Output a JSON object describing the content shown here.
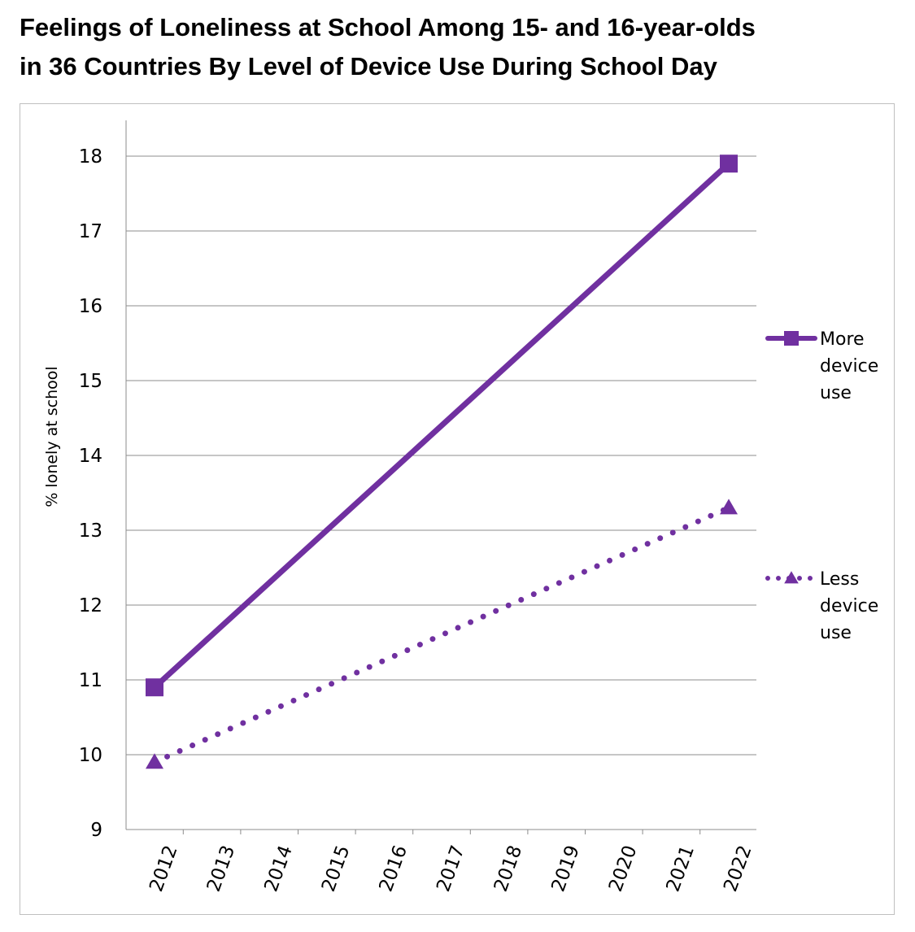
{
  "title_lines": [
    "Feelings of Loneliness at School Among 15- and 16-year-olds",
    "in 36 Countries By Level of Device Use During School Day"
  ],
  "chart_data": {
    "type": "line",
    "title": "Feelings of Loneliness at School Among 15- and 16-year-olds in 36 Countries By Level of Device Use During School Day",
    "categories": [
      "2012",
      "2013",
      "2014",
      "2015",
      "2016",
      "2017",
      "2018",
      "2019",
      "2020",
      "2021",
      "2022"
    ],
    "ylabel": "% lonely at school",
    "xlabel": "",
    "ylim": [
      9,
      18
    ],
    "yticks": [
      9,
      10,
      11,
      12,
      13,
      14,
      15,
      16,
      17,
      18
    ],
    "grid": "horizontal",
    "legend_position": "right",
    "series": [
      {
        "name": "More device use",
        "legend_lines": [
          "More",
          "device",
          "use"
        ],
        "style": "solid",
        "marker": "square",
        "color": "#7030a0",
        "points": [
          {
            "x": "2012",
            "y": 10.9
          },
          {
            "x": "2022",
            "y": 17.9
          }
        ]
      },
      {
        "name": "Less device use",
        "legend_lines": [
          "Less",
          "device",
          "use"
        ],
        "style": "dotted",
        "marker": "triangle",
        "color": "#7030a0",
        "points": [
          {
            "x": "2012",
            "y": 9.9
          },
          {
            "x": "2022",
            "y": 13.3
          }
        ]
      }
    ]
  }
}
